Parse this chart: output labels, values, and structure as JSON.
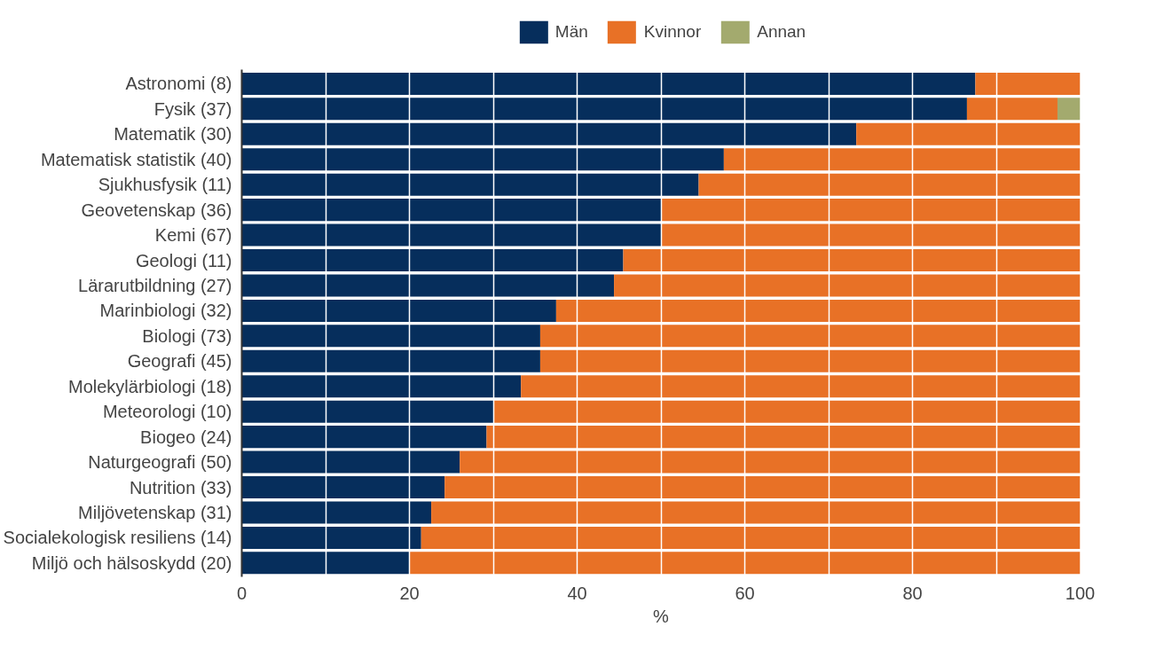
{
  "chart_data": {
    "type": "bar",
    "orientation": "horizontal",
    "stacked": true,
    "xlabel": "%",
    "categories": [
      "Astronomi (8)",
      "Fysik (37)",
      "Matematik (30)",
      "Matematisk statistik (40)",
      "Sjukhusfysik (11)",
      "Geovetenskap (36)",
      "Kemi (67)",
      "Geologi (11)",
      "Lärarutbildning (27)",
      "Marinbiologi (32)",
      "Biologi (73)",
      "Geografi (45)",
      "Molekylärbiologi (18)",
      "Meteorologi (10)",
      "Biogeo (24)",
      "Naturgeografi (50)",
      "Nutrition (33)",
      "Miljövetenskap (31)",
      "Socialekologisk resiliens (14)",
      "Miljö och hälsoskydd (20)"
    ],
    "series": [
      {
        "name": "Män",
        "color": "#062e5c",
        "values": [
          87.5,
          86.5,
          73.3,
          57.5,
          54.5,
          50,
          50,
          45.5,
          44.4,
          37.5,
          35.6,
          35.6,
          33.3,
          30,
          29.2,
          26,
          24.2,
          22.6,
          21.4,
          20
        ]
      },
      {
        "name": "Kvinnor",
        "color": "#e87126",
        "values": [
          12.5,
          10.8,
          26.7,
          42.5,
          45.5,
          50,
          50,
          54.5,
          55.6,
          62.5,
          64.4,
          64.4,
          66.7,
          70,
          70.8,
          74,
          75.8,
          77.4,
          78.6,
          80
        ]
      },
      {
        "name": "Annan",
        "color": "#a3aa6e",
        "values": [
          0,
          2.7,
          0,
          0,
          0,
          0,
          0,
          0,
          0,
          0,
          0,
          0,
          0,
          0,
          0,
          0,
          0,
          0,
          0,
          0
        ]
      }
    ],
    "xlim": [
      0,
      100
    ],
    "xticks": [
      0,
      {
        "value": 10,
        "label": null
      },
      20,
      {
        "value": 30,
        "label": null
      },
      40,
      {
        "value": 50,
        "label": null
      },
      60,
      {
        "value": 70,
        "label": null
      },
      80,
      {
        "value": 90,
        "label": null
      },
      100
    ],
    "grid": "x",
    "legend": "top"
  }
}
